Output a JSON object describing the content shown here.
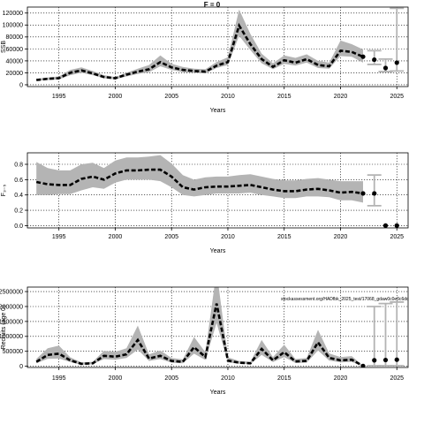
{
  "title": "F = 0",
  "chart_data": [
    {
      "type": "line",
      "ylabel": "SSB",
      "xlabel": "Years",
      "xlim": [
        1992.2,
        2026
      ],
      "ylim": [
        -3000,
        130000
      ],
      "x_ticks": [
        1995,
        2000,
        2005,
        2010,
        2015,
        2020,
        2025
      ],
      "y_ticks": [
        0,
        20000,
        40000,
        60000,
        80000,
        100000,
        120000
      ],
      "grid": "dotted",
      "series": [
        {
          "role": "estimate",
          "x": [
            1993,
            1994,
            1995,
            1996,
            1997,
            1998,
            1999,
            2000,
            2001,
            2002,
            2003,
            2004,
            2005,
            2006,
            2007,
            2008,
            2009,
            2010,
            2011,
            2012,
            2013,
            2014,
            2015,
            2016,
            2017,
            2018,
            2019,
            2020,
            2021,
            2022
          ],
          "values": [
            8000,
            10000,
            11000,
            20000,
            24000,
            19000,
            13000,
            11000,
            17000,
            22000,
            26000,
            38000,
            29000,
            25000,
            23000,
            22000,
            32000,
            38000,
            99000,
            68000,
            43000,
            30000,
            41000,
            37000,
            43000,
            33000,
            31000,
            57000,
            55000,
            47000
          ],
          "lower": [
            7000,
            8000,
            9000,
            16000,
            20000,
            16000,
            11000,
            9000,
            14000,
            18000,
            21000,
            31000,
            25000,
            21000,
            20000,
            19000,
            28000,
            33000,
            82000,
            58000,
            36000,
            26000,
            35000,
            32000,
            37000,
            28000,
            27000,
            48000,
            47000,
            37000
          ],
          "upper": [
            10000,
            12000,
            14000,
            25000,
            29000,
            23000,
            16000,
            13000,
            20000,
            27000,
            33000,
            49000,
            35000,
            30000,
            27000,
            26000,
            38000,
            46000,
            126000,
            85000,
            52000,
            36000,
            49000,
            45000,
            51000,
            40000,
            37000,
            74000,
            68000,
            59000
          ]
        },
        {
          "role": "projection",
          "x": [
            2023,
            2024,
            2025
          ],
          "values": [
            42000,
            28000,
            37000
          ],
          "lower": [
            34000,
            22000,
            23000
          ],
          "upper": [
            57000,
            43000,
            128000
          ]
        }
      ]
    },
    {
      "type": "line",
      "ylabel": "F₃₋₅",
      "xlabel": "Years",
      "xlim": [
        1992.2,
        2026
      ],
      "ylim": [
        -0.03,
        0.95
      ],
      "x_ticks": [
        1995,
        2000,
        2005,
        2010,
        2015,
        2020,
        2025
      ],
      "y_ticks": [
        0.0,
        0.2,
        0.4,
        0.6,
        0.8
      ],
      "y_tick_labels": [
        "0.0",
        "0.2",
        "0.4",
        "0.6",
        "0.8"
      ],
      "grid": "dotted",
      "series": [
        {
          "role": "estimate",
          "x": [
            1993,
            1994,
            1995,
            1996,
            1997,
            1998,
            1999,
            2000,
            2001,
            2002,
            2003,
            2004,
            2005,
            2006,
            2007,
            2008,
            2009,
            2010,
            2011,
            2012,
            2013,
            2014,
            2015,
            2016,
            2017,
            2018,
            2019,
            2020,
            2021,
            2022
          ],
          "values": [
            0.57,
            0.54,
            0.53,
            0.53,
            0.61,
            0.64,
            0.6,
            0.68,
            0.72,
            0.72,
            0.73,
            0.73,
            0.64,
            0.5,
            0.47,
            0.5,
            0.51,
            0.51,
            0.52,
            0.53,
            0.5,
            0.47,
            0.45,
            0.45,
            0.47,
            0.48,
            0.46,
            0.43,
            0.44,
            0.42
          ],
          "lower": [
            0.4,
            0.4,
            0.41,
            0.41,
            0.46,
            0.5,
            0.48,
            0.56,
            0.6,
            0.6,
            0.6,
            0.58,
            0.5,
            0.4,
            0.38,
            0.4,
            0.42,
            0.42,
            0.42,
            0.43,
            0.4,
            0.38,
            0.36,
            0.36,
            0.38,
            0.38,
            0.37,
            0.33,
            0.33,
            0.3
          ],
          "upper": [
            0.83,
            0.75,
            0.72,
            0.72,
            0.8,
            0.82,
            0.75,
            0.85,
            0.89,
            0.89,
            0.9,
            0.92,
            0.81,
            0.66,
            0.6,
            0.63,
            0.64,
            0.64,
            0.66,
            0.67,
            0.64,
            0.61,
            0.59,
            0.59,
            0.61,
            0.62,
            0.6,
            0.58,
            0.58,
            0.58
          ]
        },
        {
          "role": "projection",
          "x": [
            2023
          ],
          "values": [
            0.42
          ],
          "lower": [
            0.26
          ],
          "upper": [
            0.66
          ]
        },
        {
          "role": "projection-zero",
          "x": [
            2024,
            2025
          ],
          "values": [
            0.0,
            0.0
          ]
        }
      ]
    },
    {
      "type": "line",
      "ylabel": "Recruits (age 0)",
      "xlabel": "Years",
      "xlim": [
        1992.2,
        2026
      ],
      "ylim": [
        -40000,
        2650000
      ],
      "x_ticks": [
        1995,
        2000,
        2005,
        2010,
        2015,
        2020,
        2025
      ],
      "y_ticks": [
        0,
        500000,
        1000000,
        1500000,
        2000000,
        2500000
      ],
      "grid": "dotted",
      "annotation": "stockassessment.org/HADfbk_2025_test/17068_gdaw0c0e0c6dc",
      "series": [
        {
          "role": "estimate",
          "x": [
            1993,
            1994,
            1995,
            1996,
            1997,
            1998,
            1999,
            2000,
            2001,
            2002,
            2003,
            2004,
            2005,
            2006,
            2007,
            2008,
            2009,
            2010,
            2011,
            2012,
            2013,
            2014,
            2015,
            2016,
            2017,
            2018,
            2019,
            2020,
            2021,
            2022
          ],
          "values": [
            150000,
            380000,
            420000,
            200000,
            80000,
            100000,
            350000,
            320000,
            400000,
            880000,
            260000,
            350000,
            180000,
            150000,
            640000,
            310000,
            2100000,
            190000,
            120000,
            100000,
            580000,
            200000,
            470000,
            160000,
            180000,
            800000,
            280000,
            200000,
            220000,
            10000
          ],
          "lower": [
            100000,
            250000,
            260000,
            140000,
            50000,
            70000,
            240000,
            220000,
            280000,
            560000,
            180000,
            240000,
            120000,
            100000,
            420000,
            210000,
            1450000,
            130000,
            80000,
            70000,
            380000,
            140000,
            310000,
            110000,
            120000,
            530000,
            190000,
            130000,
            150000,
            0
          ],
          "upper": [
            250000,
            600000,
            690000,
            300000,
            130000,
            150000,
            520000,
            480000,
            600000,
            1360000,
            400000,
            530000,
            280000,
            230000,
            980000,
            470000,
            3200000,
            300000,
            180000,
            150000,
            880000,
            310000,
            720000,
            240000,
            280000,
            1220000,
            430000,
            310000,
            340000,
            20000
          ]
        },
        {
          "role": "projection",
          "x": [
            2023,
            2024,
            2025
          ],
          "values": [
            200000,
            210000,
            220000
          ],
          "lower": [
            20000,
            20000,
            20000
          ],
          "upper": [
            2000000,
            2100000,
            2150000
          ]
        }
      ]
    }
  ]
}
